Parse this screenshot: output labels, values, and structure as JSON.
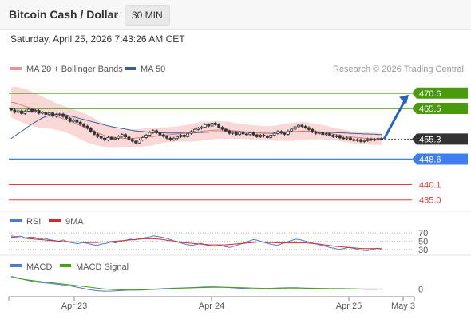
{
  "header": {
    "title": "Bitcoin Cash / Dollar",
    "timeframe": "30 MIN"
  },
  "datetime": "Saturday, April 25, 2026 7:43:26 AM CET",
  "copyright": "Research © 2026 Trading Central",
  "colors": {
    "green_level": "#4a9a0e",
    "blue_level": "#3d7ff0",
    "red_level": "#e33b3b",
    "current": "#333333",
    "bollinger": "#f7a9a9",
    "ma20": "#e07a7a",
    "ma50": "#3a5e9a",
    "arrow": "#2a64b8",
    "rsi": "#4d78d9",
    "rsi_ma": "#d42a2a",
    "macd": "#4d78d9",
    "macd_signal": "#45a01a"
  },
  "chart_data": [
    {
      "type": "candlestick",
      "panel": "price",
      "legend": [
        {
          "name": "MA 20 + Bollinger Bands",
          "color": "#f09090"
        },
        {
          "name": "MA 50",
          "color": "#3a5e9a"
        }
      ],
      "ylim": [
        432,
        474
      ],
      "levels": [
        {
          "value": 470.6,
          "label": "470.6",
          "kind": "resistance",
          "color": "#4a9a0e"
        },
        {
          "value": 465.5,
          "label": "465.5",
          "kind": "resistance",
          "color": "#4a9a0e"
        },
        {
          "value": 455.3,
          "label": "455.3",
          "kind": "current",
          "color": "#333333"
        },
        {
          "value": 448.6,
          "label": "448.6",
          "kind": "pivot",
          "color": "#3d7ff0"
        },
        {
          "value": 440.1,
          "label": "440.1",
          "kind": "support",
          "color": "#e33b3b"
        },
        {
          "value": 435.0,
          "label": "435.0",
          "kind": "support",
          "color": "#e33b3b"
        }
      ],
      "x_ticks": [
        "Apr 23",
        "Apr 24",
        "Apr 25",
        "May 3"
      ],
      "close": [
        465.0,
        464.2,
        464.7,
        463.8,
        464.6,
        465.2,
        464.5,
        464.8,
        463.9,
        464.3,
        463.5,
        464.0,
        462.9,
        463.4,
        463.6,
        462.8,
        462.2,
        461.2,
        461.7,
        460.9,
        460.2,
        459.6,
        458.9,
        457.8,
        456.9,
        456.1,
        455.6,
        455.0,
        455.8,
        455.3,
        455.6,
        456.2,
        456.8,
        456.0,
        455.2,
        454.6,
        454.0,
        455.0,
        455.8,
        456.6,
        457.5,
        458.1,
        457.4,
        456.7,
        456.2,
        455.6,
        455.1,
        455.6,
        456.1,
        456.6,
        456.1,
        457.2,
        457.8,
        458.5,
        458.9,
        459.3,
        460.1,
        459.6,
        460.6,
        460.1,
        459.2,
        458.6,
        458.0,
        457.2,
        457.5,
        456.8,
        457.6,
        457.0,
        456.8,
        457.4,
        456.7,
        456.1,
        456.6,
        456.3,
        455.8,
        456.6,
        457.2,
        457.8,
        457.3,
        456.9,
        458.0,
        458.6,
        459.4,
        459.9,
        459.5,
        459.1,
        458.5,
        457.7,
        457.2,
        457.5,
        456.8,
        457.1,
        456.6,
        456.1,
        456.4,
        455.7,
        455.4,
        455.7,
        455.2,
        454.8,
        455.1,
        454.5,
        454.8,
        455.3,
        455.0,
        455.2,
        455.5,
        455.3
      ],
      "ma20": [
        467.5,
        467.4,
        467.0,
        466.6,
        466.2,
        465.8,
        465.4,
        465.0,
        464.6,
        464.2,
        463.9,
        463.6,
        463.2,
        462.8,
        462.5,
        462.1,
        461.7,
        461.3,
        460.8,
        460.3,
        459.8,
        459.3,
        458.8,
        458.3,
        457.8,
        457.3,
        456.9,
        456.5,
        456.2,
        456.0,
        455.8,
        455.7,
        455.6,
        455.5,
        455.5,
        455.5,
        455.6,
        455.7,
        455.8,
        455.9,
        456.0,
        456.1,
        456.3,
        456.5,
        456.6,
        456.7,
        456.8,
        456.9,
        457.0,
        457.1,
        457.2,
        457.3,
        457.4,
        457.6,
        457.7,
        457.9,
        458.0,
        458.1,
        458.2,
        458.3,
        458.3,
        458.3,
        458.3,
        458.2,
        458.1,
        458.0,
        457.9,
        457.8,
        457.7,
        457.6,
        457.5,
        457.4,
        457.3,
        457.2,
        457.2,
        457.2,
        457.2,
        457.3,
        457.4,
        457.5,
        457.6,
        457.7,
        457.8,
        457.9,
        458.0,
        458.0,
        458.0,
        457.9,
        457.8,
        457.7,
        457.6,
        457.4,
        457.2,
        457.0,
        456.8,
        456.6,
        456.4,
        456.2,
        456.0,
        455.9,
        455.8,
        455.7,
        455.6,
        455.5,
        455.4,
        455.4,
        455.3,
        455.3
      ],
      "ma50": [
        455.5,
        456.3,
        457.1,
        457.9,
        458.7,
        459.5,
        460.3,
        461.0,
        461.7,
        462.3,
        462.8,
        463.2,
        463.5,
        463.6,
        463.6,
        463.5,
        463.3,
        463.0,
        462.7,
        462.4,
        462.1,
        461.8,
        461.5,
        461.2,
        460.9,
        460.6,
        460.3,
        460.0,
        459.7,
        459.4,
        459.2,
        459.0,
        458.8,
        458.6,
        458.4,
        458.2,
        458.0,
        457.9,
        457.8,
        457.7,
        457.6,
        457.5,
        457.5,
        457.4,
        457.4,
        457.3,
        457.3,
        457.3,
        457.3,
        457.3,
        457.3,
        457.3,
        457.4,
        457.4,
        457.5,
        457.5,
        457.6,
        457.6,
        457.7,
        457.7,
        457.7,
        457.7,
        457.7,
        457.7,
        457.7,
        457.7,
        457.7,
        457.6,
        457.6,
        457.6,
        457.6,
        457.6,
        457.6,
        457.6,
        457.6,
        457.6,
        457.6,
        457.6,
        457.7,
        457.7,
        457.7,
        457.7,
        457.7,
        457.7,
        457.7,
        457.7,
        457.7,
        457.7,
        457.7,
        457.6,
        457.6,
        457.6,
        457.5,
        457.5,
        457.4,
        457.4,
        457.3,
        457.3,
        457.2,
        457.2,
        457.1,
        457.1,
        457.0,
        457.0,
        456.9,
        456.9,
        456.8,
        456.8
      ],
      "band_width": [
        5.0,
        5.4,
        5.6,
        5.7,
        5.8,
        5.8,
        5.7,
        5.6,
        5.4,
        5.2,
        5.0,
        4.8,
        4.6,
        4.5,
        4.4,
        4.3,
        4.3,
        4.3,
        4.4,
        4.5,
        4.6,
        4.6,
        4.6,
        4.5,
        4.4,
        4.2,
        4.0,
        3.8,
        3.6,
        3.4,
        3.2,
        3.0,
        2.9,
        2.8,
        2.8,
        2.8,
        2.9,
        3.0,
        3.0,
        3.0,
        3.0,
        2.9,
        2.8,
        2.7,
        2.6,
        2.5,
        2.5,
        2.5,
        2.5,
        2.6,
        2.7,
        2.8,
        2.9,
        3.0,
        3.1,
        3.1,
        3.1,
        3.1,
        3.1,
        3.0,
        3.0,
        2.9,
        2.9,
        2.8,
        2.7,
        2.6,
        2.5,
        2.4,
        2.4,
        2.4,
        2.4,
        2.4,
        2.4,
        2.4,
        2.4,
        2.4,
        2.5,
        2.6,
        2.7,
        2.8,
        2.9,
        3.0,
        3.0,
        3.0,
        3.0,
        2.9,
        2.8,
        2.7,
        2.6,
        2.5,
        2.4,
        2.3,
        2.2,
        2.1,
        2.0,
        2.0,
        2.0,
        2.0,
        2.0,
        2.0,
        2.0,
        2.0,
        2.0,
        2.0,
        2.0,
        2.0,
        2.0,
        2.0
      ],
      "projection": {
        "from": 455.3,
        "to": 470.6
      }
    },
    {
      "type": "line",
      "panel": "rsi",
      "legend": [
        {
          "name": "RSI",
          "color": "#4d78d9"
        },
        {
          "name": "9MA",
          "color": "#d42a2a"
        }
      ],
      "ylim": [
        20,
        80
      ],
      "y_ticks": [
        70,
        50,
        30
      ],
      "series": [
        {
          "name": "RSI",
          "values": [
            63,
            61,
            62,
            58,
            60,
            59,
            55,
            57,
            54,
            52,
            50,
            53,
            48,
            46,
            44,
            47,
            45,
            42,
            40,
            43,
            45,
            48,
            46,
            50,
            52,
            55,
            53,
            56,
            58,
            60,
            63,
            61,
            59,
            56,
            52,
            48,
            45,
            42,
            40,
            42,
            45,
            41,
            39,
            38,
            40,
            37,
            35,
            38,
            42,
            46,
            50,
            54,
            52,
            48,
            45,
            42,
            40,
            44,
            48,
            52,
            55,
            53,
            50,
            47,
            44,
            41,
            38,
            35,
            33,
            30,
            32,
            35,
            33,
            30,
            28,
            27,
            30,
            33,
            31
          ]
        },
        {
          "name": "9MA",
          "values": [
            60,
            59,
            58,
            57,
            56,
            55,
            54,
            53,
            52,
            51,
            50,
            49,
            49,
            48,
            48,
            48,
            47,
            47,
            47,
            48,
            48,
            49,
            50,
            51,
            52,
            53,
            54,
            55,
            56,
            56,
            56,
            55,
            54,
            52,
            51,
            49,
            47,
            46,
            45,
            44,
            43,
            42,
            41,
            41,
            41,
            41,
            42,
            43,
            44,
            45,
            46,
            47,
            48,
            48,
            47,
            47,
            46,
            46,
            46,
            46,
            46,
            46,
            46,
            45,
            44,
            43,
            41,
            40,
            38,
            37,
            36,
            35,
            34,
            33,
            32,
            32,
            32,
            32,
            32
          ]
        }
      ]
    },
    {
      "type": "line",
      "panel": "macd",
      "legend": [
        {
          "name": "MACD",
          "color": "#4d78d9"
        },
        {
          "name": "MACD Signal",
          "color": "#45a01a"
        }
      ],
      "ylim": [
        -5,
        12
      ],
      "y_ticks": [
        0
      ],
      "series": [
        {
          "name": "MACD",
          "values": [
            10.5,
            8.8,
            7.2,
            6.0,
            5.2,
            4.6,
            3.9,
            3.1,
            2.1,
            0.9,
            -0.4,
            -1.4,
            -1.8,
            -1.7,
            -1.4,
            -1.1,
            -1.0,
            -0.9,
            -0.4,
            0.1,
            0.4,
            0.6,
            0.8,
            1.0,
            1.3,
            1.6,
            1.8,
            1.6,
            1.2,
            0.9,
            0.5,
            0.1,
            -0.1,
            0.2,
            0.6,
            0.9,
            1.1,
            1.0,
            0.6,
            0.3,
            0.1,
            0.1,
            0.2,
            0.3,
            0.1,
            -0.1,
            -0.2,
            -0.2,
            -0.1
          ]
        },
        {
          "name": "MACD Signal",
          "values": [
            9.6,
            8.6,
            7.6,
            6.8,
            6.0,
            5.3,
            4.6,
            3.9,
            3.2,
            2.4,
            1.6,
            0.8,
            0.1,
            -0.4,
            -0.7,
            -0.8,
            -0.8,
            -0.7,
            -0.5,
            -0.2,
            0.1,
            0.4,
            0.6,
            0.8,
            1.0,
            1.2,
            1.4,
            1.4,
            1.4,
            1.2,
            1.0,
            0.8,
            0.6,
            0.5,
            0.5,
            0.6,
            0.7,
            0.8,
            0.7,
            0.6,
            0.5,
            0.4,
            0.3,
            0.3,
            0.2,
            0.1,
            0.0,
            0.0,
            0.0
          ]
        }
      ]
    }
  ]
}
